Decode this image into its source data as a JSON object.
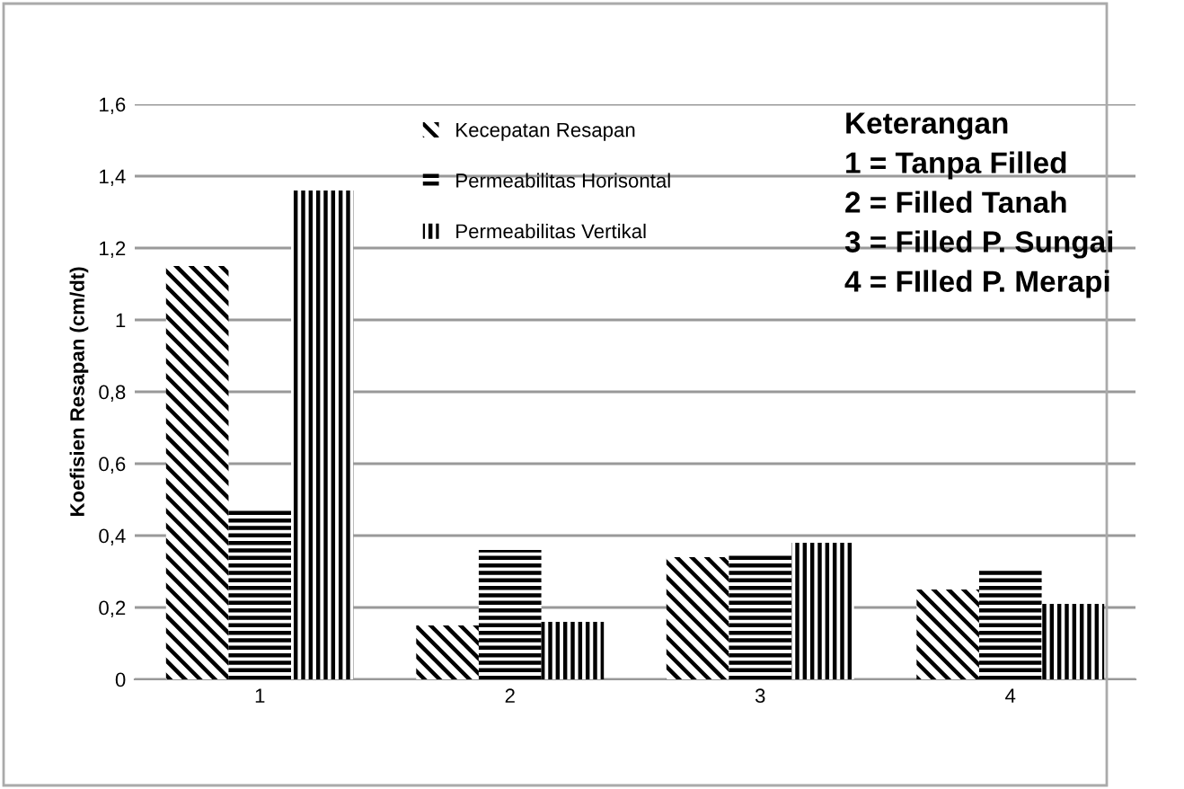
{
  "chart_data": {
    "type": "bar",
    "ylabel": "Koefisien Resapan (cm/dt)",
    "categories": [
      "1",
      "2",
      "3",
      "4"
    ],
    "series": [
      {
        "name": "Kecepatan Resapan",
        "color": "#000000",
        "values": [
          1.15,
          0.15,
          0.34,
          0.25
        ]
      },
      {
        "name": "Permeabilitas Horisontal",
        "color": "#000000",
        "values": [
          0.47,
          0.36,
          0.35,
          0.31
        ]
      },
      {
        "name": "Permeabilitas Vertikal",
        "color": "#000000",
        "values": [
          1.36,
          0.16,
          0.38,
          0.21
        ]
      }
    ],
    "ylim": [
      0,
      1.6
    ],
    "yticks": [
      {
        "value": 0,
        "label": "0"
      },
      {
        "value": 0.2,
        "label": "0,2"
      },
      {
        "value": 0.4,
        "label": "0,4"
      },
      {
        "value": 0.6,
        "label": "0,6"
      },
      {
        "value": 0.8,
        "label": "0,8"
      },
      {
        "value": 1,
        "label": "1"
      },
      {
        "value": 1.2,
        "label": "1,2"
      },
      {
        "value": 1.4,
        "label": "1,4"
      },
      {
        "value": 1.6,
        "label": "1,6"
      }
    ],
    "grid": "y",
    "legend": "top",
    "annotations": [
      "Keterangan",
      "1 = Tanpa Filled",
      "2 = Filled Tanah",
      "3 = Filled P. Sungai",
      "4 = FIlled P. Merapi"
    ]
  }
}
